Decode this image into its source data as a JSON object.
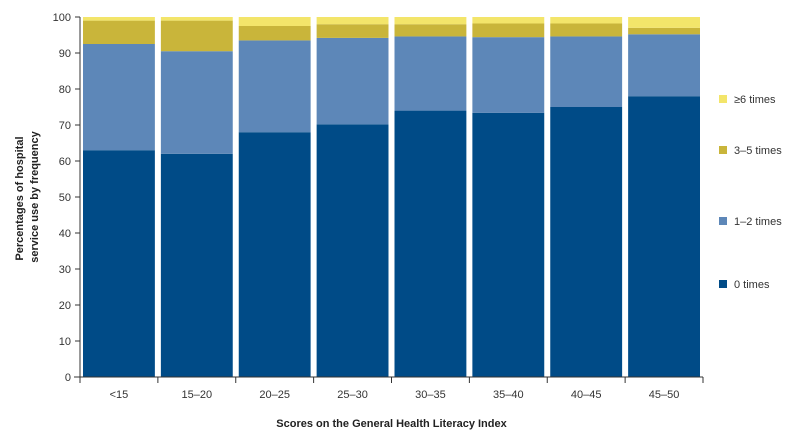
{
  "chart_data": {
    "type": "bar",
    "stacked": true,
    "categories": [
      "<15",
      "15–20",
      "20–25",
      "25–30",
      "30–35",
      "35–40",
      "40–45",
      "45–50"
    ],
    "series": [
      {
        "name": "0 times",
        "color": "#004b87",
        "values": [
          63.0,
          62.0,
          68.0,
          70.2,
          74.0,
          73.4,
          75.0,
          78.0
        ]
      },
      {
        "name": "1–2 times",
        "color": "#5d87b8",
        "values": [
          29.5,
          28.5,
          25.5,
          24.0,
          20.6,
          21.0,
          19.6,
          17.2
        ]
      },
      {
        "name": "3–5 times",
        "color": "#c9b53a",
        "values": [
          6.5,
          8.5,
          4.0,
          3.8,
          3.4,
          3.8,
          3.6,
          1.8
        ]
      },
      {
        "name": "≥6 times",
        "color": "#f3e56a",
        "values": [
          1.0,
          1.0,
          2.5,
          2.0,
          2.0,
          1.8,
          1.8,
          3.0
        ]
      }
    ],
    "xlabel": "Scores on the General Health Literacy Index",
    "ylabel_lines": [
      "Percentages of hospital",
      "service use by frequency"
    ],
    "ylim": [
      0,
      100
    ],
    "yticks": [
      0,
      10,
      20,
      30,
      40,
      50,
      60,
      70,
      80,
      90,
      100
    ],
    "legend_order": [
      "≥6 times",
      "3–5 times",
      "1–2 times",
      "0 times"
    ],
    "legend_position": "right",
    "grid": false
  }
}
